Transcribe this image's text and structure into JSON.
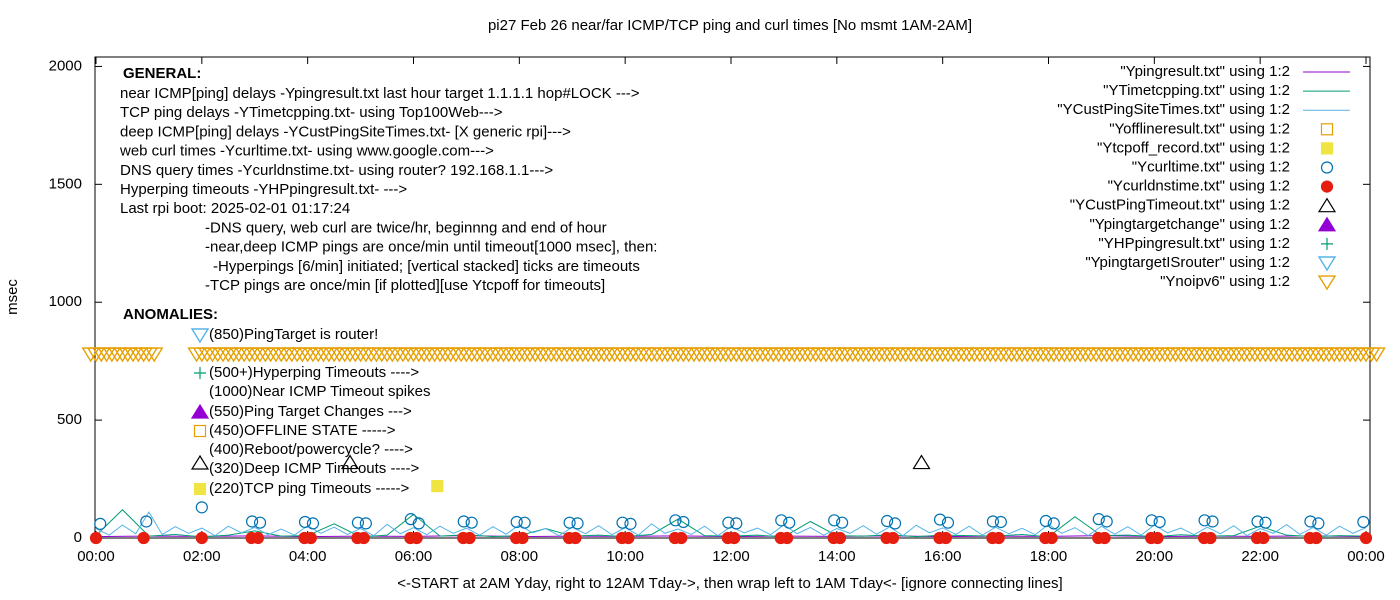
{
  "chart_data": {
    "type": "scatter",
    "title": "pi27 Feb 26  near/far ICMP/TCP ping and curl times [No msmt 1AM-2AM]",
    "xlabel": "<-START at 2AM Yday, right to 12AM Tday->, then wrap left to 1AM Tday<- [ignore connecting lines]",
    "ylabel": "msec",
    "xlim": [
      0,
      24
    ],
    "ylim": [
      0,
      2040
    ],
    "xticks": [
      {
        "value": 0,
        "label": "00:00"
      },
      {
        "value": 2,
        "label": "02:00"
      },
      {
        "value": 4,
        "label": "04:00"
      },
      {
        "value": 6,
        "label": "06:00"
      },
      {
        "value": 8,
        "label": "08:00"
      },
      {
        "value": 10,
        "label": "10:00"
      },
      {
        "value": 12,
        "label": "12:00"
      },
      {
        "value": 14,
        "label": "14:00"
      },
      {
        "value": 16,
        "label": "16:00"
      },
      {
        "value": 18,
        "label": "18:00"
      },
      {
        "value": 20,
        "label": "20:00"
      },
      {
        "value": 22,
        "label": "22:00"
      },
      {
        "value": 24,
        "label": "00:00"
      }
    ],
    "yticks": [
      0,
      500,
      1000,
      1500,
      2000
    ],
    "notes": {
      "general_title": "GENERAL:",
      "general": [
        "near ICMP[ping] delays -Ypingresult.txt last hour target 1.1.1.1 hop#LOCK --->",
        "TCP ping delays -YTimetcpping.txt- using Top100Web--->",
        "deep ICMP[ping] delays -YCustPingSiteTimes.txt- [X generic rpi]--->",
        "web curl times -Ycurltime.txt- using www.google.com--->",
        "DNS query times -Ycurldnstime.txt- using router? 192.168.1.1--->",
        "Hyperping timeouts -YHPpingresult.txt- --->",
        "Last rpi boot: 2025-02-01 01:17:24",
        "-DNS query, web curl are twice/hr, beginnng and end of hour",
        "-near,deep ICMP pings are once/min until timeout[1000 msec], then:",
        "-Hyperpings [6/min] initiated; [vertical stacked] ticks are timeouts",
        "-TCP pings are once/min [if plotted][use Ytcpoff for timeouts]"
      ],
      "anomalies_title": "ANOMALIES:",
      "anomalies": [
        "(850)PingTarget is router!",
        "(500+)Hyperping Timeouts ---->",
        "(1000)Near ICMP Timeout spikes",
        "(550)Ping Target Changes --->",
        "(450)OFFLINE STATE ----->",
        "(400)Reboot/powercycle? ---->",
        "(320)Deep ICMP Timeouts ---->",
        "(220)TCP ping Timeouts ----->"
      ]
    },
    "series": [
      {
        "name": "\"Ypingresult.txt\" using 1:2",
        "color": "#9400d3",
        "marker": "line",
        "x": [
          0,
          1,
          2,
          3,
          4,
          5,
          6,
          7,
          8,
          9,
          10,
          11,
          12,
          13,
          14,
          15,
          16,
          17,
          18,
          19,
          20,
          21,
          22,
          23,
          24
        ],
        "values": [
          6,
          8,
          7,
          9,
          6,
          8,
          7,
          10,
          6,
          8,
          7,
          9,
          6,
          8,
          7,
          9,
          6,
          8,
          7,
          10,
          6,
          8,
          7,
          9,
          6
        ]
      },
      {
        "name": "\"YTimetcpping.txt\" using 1:2",
        "color": "#009e73",
        "marker": "line",
        "x": [
          0,
          0.5,
          1,
          1.5,
          2,
          2.5,
          3,
          3.5,
          4,
          4.5,
          5,
          5.5,
          6,
          6.5,
          7,
          7.5,
          8,
          8.5,
          9,
          9.5,
          10,
          10.5,
          11,
          11.5,
          12,
          12.5,
          13,
          13.5,
          14,
          14.5,
          15,
          15.5,
          16,
          16.5,
          17,
          17.5,
          18,
          18.5,
          19,
          19.5,
          20,
          20.5,
          21,
          21.5,
          22,
          22.5,
          23,
          23.5,
          24
        ],
        "values": [
          10,
          120,
          8,
          15,
          5,
          12,
          30,
          8,
          10,
          60,
          5,
          12,
          100,
          8,
          14,
          6,
          10,
          40,
          8,
          12,
          6,
          15,
          80,
          10,
          8,
          12,
          5,
          70,
          10,
          8,
          14,
          6,
          12,
          10,
          8,
          15,
          5,
          90,
          10,
          12,
          6,
          14,
          8,
          10,
          50,
          12,
          6,
          10,
          8
        ]
      },
      {
        "name": "\"YCustPingSiteTimes.txt\" using 1:2",
        "color": "#56b4e9",
        "marker": "line",
        "x": [
          0,
          0.25,
          0.5,
          0.75,
          1,
          1.25,
          1.5,
          1.75,
          2,
          2.25,
          2.5,
          2.75,
          3,
          3.25,
          3.5,
          3.75,
          4,
          4.25,
          4.5,
          4.75,
          5,
          5.25,
          5.5,
          5.75,
          6,
          6.25,
          6.5,
          6.75,
          7,
          7.25,
          7.5,
          7.75,
          8,
          8.25,
          8.5,
          8.75,
          9,
          9.25,
          9.5,
          9.75,
          10,
          10.25,
          10.5,
          10.75,
          11,
          11.25,
          11.5,
          11.75,
          12,
          12.25,
          12.5,
          12.75,
          13,
          13.25,
          13.5,
          13.75,
          14,
          14.25,
          14.5,
          14.75,
          15,
          15.25,
          15.5,
          15.75,
          16,
          16.25,
          16.5,
          16.75,
          17,
          17.25,
          17.5,
          17.75,
          18,
          18.25,
          18.5,
          18.75,
          19,
          19.25,
          19.5,
          19.75,
          20,
          20.25,
          20.5,
          20.75,
          21,
          21.25,
          21.5,
          21.75,
          22,
          22.25,
          22.5,
          22.75,
          23,
          23.25,
          23.5,
          23.75,
          24
        ],
        "values": [
          40,
          12,
          55,
          18,
          110,
          15,
          48,
          20,
          42,
          10,
          50,
          22,
          45,
          14,
          38,
          12,
          52,
          20,
          46,
          15,
          40,
          10,
          58,
          18,
          44,
          14,
          50,
          20,
          42,
          12,
          48,
          16,
          55,
          22,
          40,
          10,
          46,
          18,
          52,
          14,
          44,
          12,
          60,
          20,
          38,
          15,
          50,
          10,
          48,
          22,
          42,
          14,
          56,
          18,
          45,
          12,
          40,
          20,
          52,
          16,
          47,
          10,
          54,
          22,
          43,
          15,
          50,
          12,
          46,
          18,
          41,
          14,
          58,
          20,
          44,
          10,
          50,
          16,
          48,
          12,
          55,
          22,
          42,
          14,
          46,
          18,
          52,
          10,
          40,
          20,
          57,
          15,
          45,
          12,
          50,
          20,
          44
        ]
      },
      {
        "name": "\"Yofflineresult.txt\" using 1:2",
        "color": "#e69f00",
        "marker": "square-open",
        "x": [],
        "values": []
      },
      {
        "name": "\"Ytcpoff_record.txt\" using 1:2",
        "color": "#f0e442",
        "marker": "square",
        "x": [
          6.45
        ],
        "values": [
          220
        ]
      },
      {
        "name": "\"Ycurltime.txt\" using 1:2",
        "color": "#0072b2",
        "marker": "circle-open",
        "x": [
          0.08,
          0.95,
          2,
          2.95,
          3.1,
          3.95,
          4.1,
          4.95,
          5.1,
          5.95,
          6.1,
          6.95,
          7.1,
          7.95,
          8.1,
          8.95,
          9.1,
          9.95,
          10.1,
          10.95,
          11.1,
          11.95,
          12.1,
          12.95,
          13.1,
          13.95,
          14.1,
          14.95,
          15.1,
          15.95,
          16.1,
          16.95,
          17.1,
          17.95,
          18.1,
          18.95,
          19.1,
          19.95,
          20.1,
          20.95,
          21.1,
          21.95,
          22.1,
          22.95,
          23.1,
          23.95
        ],
        "values": [
          60,
          70,
          130,
          70,
          65,
          68,
          62,
          65,
          62,
          80,
          62,
          70,
          65,
          68,
          65,
          65,
          62,
          65,
          60,
          75,
          68,
          65,
          62,
          75,
          65,
          75,
          65,
          72,
          62,
          78,
          65,
          70,
          68,
          72,
          62,
          80,
          70,
          75,
          68,
          75,
          70,
          70,
          65,
          70,
          62,
          68
        ]
      },
      {
        "name": "\"Ycurldnstime.txt\" using 1:2",
        "color": "#e51e10",
        "marker": "circle",
        "x": [
          0,
          0.9,
          2,
          2.94,
          3.06,
          3.94,
          4.06,
          4.94,
          5.06,
          5.94,
          6.06,
          6.94,
          7.06,
          7.94,
          8.06,
          8.94,
          9.06,
          9.94,
          10.06,
          10.94,
          11.06,
          11.94,
          12.06,
          12.94,
          13.06,
          13.94,
          14.06,
          14.94,
          15.06,
          15.94,
          16.06,
          16.94,
          17.06,
          17.94,
          18.06,
          18.94,
          19.06,
          19.94,
          20.06,
          20.94,
          21.06,
          21.94,
          22.06,
          22.94,
          23.06,
          24
        ],
        "values": [
          0,
          0,
          0,
          0,
          0,
          0,
          0,
          0,
          0,
          0,
          0,
          0,
          0,
          0,
          0,
          0,
          0,
          0,
          0,
          0,
          0,
          0,
          0,
          0,
          0,
          0,
          0,
          0,
          0,
          0,
          0,
          0,
          0,
          0,
          0,
          0,
          0,
          0,
          0,
          0,
          0,
          0,
          0,
          0,
          0,
          0
        ]
      },
      {
        "name": "\"YCustPingTimeout.txt\" using 1:2",
        "color": "#000000",
        "marker": "triangle-open",
        "x": [
          4.8,
          15.6
        ],
        "values": [
          320,
          320
        ]
      },
      {
        "name": "\"Ypingtargetchange\" using 1:2",
        "color": "#9400d3",
        "marker": "triangle",
        "x": [],
        "values": []
      },
      {
        "name": "\"YHPpingresult.txt\" using 1:2",
        "color": "#009e73",
        "marker": "plus",
        "x": [],
        "values": []
      },
      {
        "name": "\"YpingtargetISrouter\" using 1:2",
        "color": "#56b4e9",
        "marker": "triangle-down-open",
        "x": [],
        "values": []
      },
      {
        "name": "\"Ynoipv6\" using 1:2",
        "color": "#e69f00",
        "marker": "triangle-down-open",
        "x": [
          -0.1,
          0,
          0.1,
          0.2,
          0.3,
          0.4,
          0.5,
          0.6,
          0.7,
          0.8,
          0.9,
          1,
          1.1,
          1.9,
          2,
          2.1,
          2.2,
          2.3,
          2.4,
          2.5,
          2.6,
          2.7,
          2.8,
          2.9,
          3,
          3.1,
          3.2,
          3.3,
          3.4,
          3.5,
          3.6,
          3.7,
          3.8,
          3.9,
          4,
          4.1,
          4.2,
          4.3,
          4.4,
          4.5,
          4.6,
          4.7,
          4.8,
          4.9,
          5,
          5.1,
          5.2,
          5.3,
          5.4,
          5.5,
          5.6,
          5.7,
          5.8,
          5.9,
          6,
          6.1,
          6.2,
          6.3,
          6.4,
          6.5,
          6.6,
          6.7,
          6.8,
          6.9,
          7,
          7.1,
          7.2,
          7.3,
          7.4,
          7.5,
          7.6,
          7.7,
          7.8,
          7.9,
          8,
          8.1,
          8.2,
          8.3,
          8.4,
          8.5,
          8.6,
          8.7,
          8.8,
          8.9,
          9,
          9.1,
          9.2,
          9.3,
          9.4,
          9.5,
          9.6,
          9.7,
          9.8,
          9.9,
          10,
          10.1,
          10.2,
          10.3,
          10.4,
          10.5,
          10.6,
          10.7,
          10.8,
          10.9,
          11,
          11.1,
          11.2,
          11.3,
          11.4,
          11.5,
          11.6,
          11.7,
          11.8,
          11.9,
          12,
          12.1,
          12.2,
          12.3,
          12.4,
          12.5,
          12.6,
          12.7,
          12.8,
          12.9,
          13,
          13.1,
          13.2,
          13.3,
          13.4,
          13.5,
          13.6,
          13.7,
          13.8,
          13.9,
          14,
          14.1,
          14.2,
          14.3,
          14.4,
          14.5,
          14.6,
          14.7,
          14.8,
          14.9,
          15,
          15.1,
          15.2,
          15.3,
          15.4,
          15.5,
          15.6,
          15.7,
          15.8,
          15.9,
          16,
          16.1,
          16.2,
          16.3,
          16.4,
          16.5,
          16.6,
          16.7,
          16.8,
          16.9,
          17,
          17.1,
          17.2,
          17.3,
          17.4,
          17.5,
          17.6,
          17.7,
          17.8,
          17.9,
          18,
          18.1,
          18.2,
          18.3,
          18.4,
          18.5,
          18.6,
          18.7,
          18.8,
          18.9,
          19,
          19.1,
          19.2,
          19.3,
          19.4,
          19.5,
          19.6,
          19.7,
          19.8,
          19.9,
          20,
          20.1,
          20.2,
          20.3,
          20.4,
          20.5,
          20.6,
          20.7,
          20.8,
          20.9,
          21,
          21.1,
          21.2,
          21.3,
          21.4,
          21.5,
          21.6,
          21.7,
          21.8,
          21.9,
          22,
          22.1,
          22.2,
          22.3,
          22.4,
          22.5,
          22.6,
          22.7,
          22.8,
          22.9,
          23,
          23.1,
          23.2,
          23.3,
          23.4,
          23.5,
          23.6,
          23.7,
          23.8,
          23.9,
          24,
          24.1,
          24.2
        ],
        "values": [
          780,
          780,
          780,
          780,
          780,
          780,
          780,
          780,
          780,
          780,
          780,
          780,
          780,
          780,
          780,
          780,
          780,
          780,
          780,
          780,
          780,
          780,
          780,
          780,
          780,
          780,
          780,
          780,
          780,
          780,
          780,
          780,
          780,
          780,
          780,
          780,
          780,
          780,
          780,
          780,
          780,
          780,
          780,
          780,
          780,
          780,
          780,
          780,
          780,
          780,
          780,
          780,
          780,
          780,
          780,
          780,
          780,
          780,
          780,
          780,
          780,
          780,
          780,
          780,
          780,
          780,
          780,
          780,
          780,
          780,
          780,
          780,
          780,
          780,
          780,
          780,
          780,
          780,
          780,
          780,
          780,
          780,
          780,
          780,
          780,
          780,
          780,
          780,
          780,
          780,
          780,
          780,
          780,
          780,
          780,
          780,
          780,
          780,
          780,
          780,
          780,
          780,
          780,
          780,
          780,
          780,
          780,
          780,
          780,
          780,
          780,
          780,
          780,
          780,
          780,
          780,
          780,
          780,
          780,
          780,
          780,
          780,
          780,
          780,
          780,
          780,
          780,
          780,
          780,
          780,
          780,
          780,
          780,
          780,
          780,
          780,
          780,
          780,
          780,
          780,
          780,
          780,
          780,
          780,
          780,
          780,
          780,
          780,
          780,
          780,
          780,
          780,
          780,
          780,
          780,
          780,
          780,
          780,
          780,
          780,
          780,
          780,
          780,
          780,
          780,
          780,
          780,
          780,
          780,
          780,
          780,
          780,
          780,
          780,
          780,
          780,
          780,
          780,
          780,
          780,
          780,
          780,
          780,
          780,
          780,
          780,
          780,
          780,
          780,
          780,
          780,
          780,
          780,
          780,
          780,
          780,
          780,
          780,
          780,
          780,
          780,
          780,
          780,
          780,
          780,
          780,
          780,
          780,
          780,
          780,
          780,
          780,
          780,
          780,
          780,
          780,
          780,
          780,
          780,
          780,
          780,
          780,
          780,
          780,
          780,
          780,
          780,
          780,
          780,
          780,
          780,
          780,
          780,
          780,
          780,
          780,
          780
        ]
      }
    ]
  }
}
